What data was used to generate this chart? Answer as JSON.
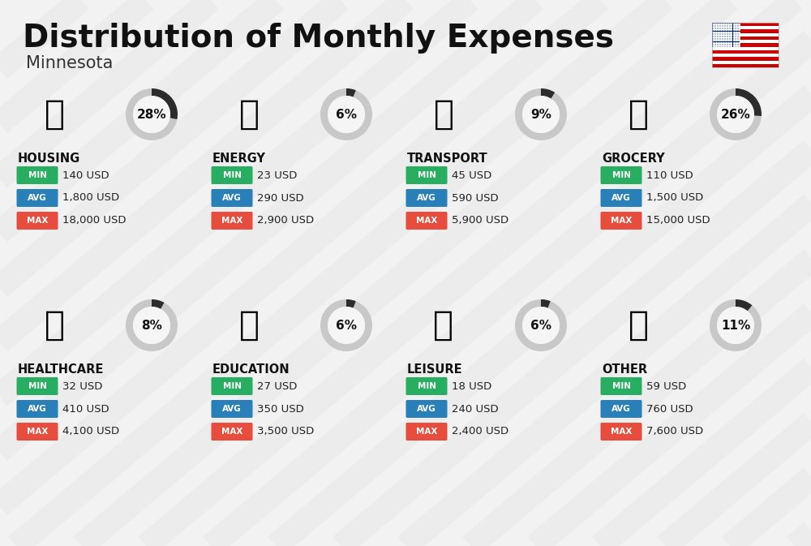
{
  "title": "Distribution of Monthly Expenses",
  "subtitle": "Minnesota",
  "bg_color": "#f2f2f2",
  "categories": [
    {
      "name": "HOUSING",
      "pct": 28,
      "min_val": "140 USD",
      "avg_val": "1,800 USD",
      "max_val": "18,000 USD",
      "row": 0,
      "col": 0
    },
    {
      "name": "ENERGY",
      "pct": 6,
      "min_val": "23 USD",
      "avg_val": "290 USD",
      "max_val": "2,900 USD",
      "row": 0,
      "col": 1
    },
    {
      "name": "TRANSPORT",
      "pct": 9,
      "min_val": "45 USD",
      "avg_val": "590 USD",
      "max_val": "5,900 USD",
      "row": 0,
      "col": 2
    },
    {
      "name": "GROCERY",
      "pct": 26,
      "min_val": "110 USD",
      "avg_val": "1,500 USD",
      "max_val": "15,000 USD",
      "row": 0,
      "col": 3
    },
    {
      "name": "HEALTHCARE",
      "pct": 8,
      "min_val": "32 USD",
      "avg_val": "410 USD",
      "max_val": "4,100 USD",
      "row": 1,
      "col": 0
    },
    {
      "name": "EDUCATION",
      "pct": 6,
      "min_val": "27 USD",
      "avg_val": "350 USD",
      "max_val": "3,500 USD",
      "row": 1,
      "col": 1
    },
    {
      "name": "LEISURE",
      "pct": 6,
      "min_val": "18 USD",
      "avg_val": "240 USD",
      "max_val": "2,400 USD",
      "row": 1,
      "col": 2
    },
    {
      "name": "OTHER",
      "pct": 11,
      "min_val": "59 USD",
      "avg_val": "760 USD",
      "max_val": "7,600 USD",
      "row": 1,
      "col": 3
    }
  ],
  "min_color": "#27ae60",
  "avg_color": "#2980b9",
  "max_color": "#e74c3c",
  "donut_bg": "#c8c8c8",
  "donut_fg": "#2c2c2c",
  "title_color": "#111111",
  "subtitle_color": "#333333",
  "cat_name_color": "#111111",
  "value_color": "#222222",
  "badge_text_color": "#ffffff",
  "stripe_color": "#e8e8e8",
  "inner_circle_color": "#f5f5f5"
}
